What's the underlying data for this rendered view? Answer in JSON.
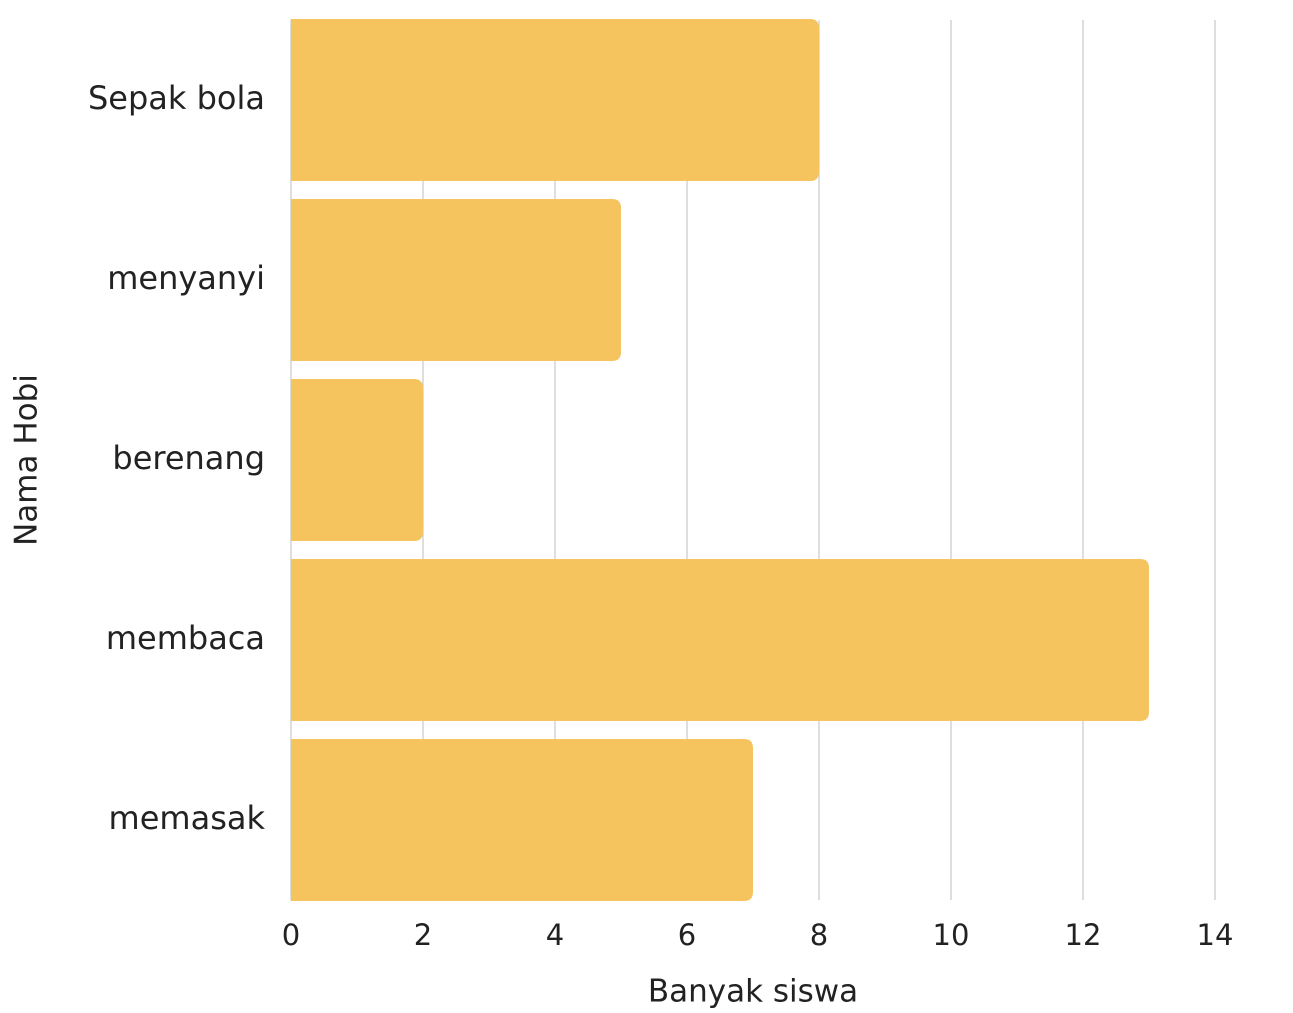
{
  "chart_data": {
    "type": "bar",
    "orientation": "horizontal",
    "categories": [
      "Sepak bola",
      "menyanyi",
      "berenang",
      "membaca",
      "memasak"
    ],
    "values": [
      8,
      5,
      2,
      13,
      7
    ],
    "color": "#f5c45e",
    "xlabel": "Banyak siswa",
    "ylabel": "Nama Hobi",
    "xlim": [
      0,
      15
    ],
    "xticks": [
      0,
      2,
      4,
      6,
      8,
      10,
      12,
      14
    ],
    "grid": true
  }
}
